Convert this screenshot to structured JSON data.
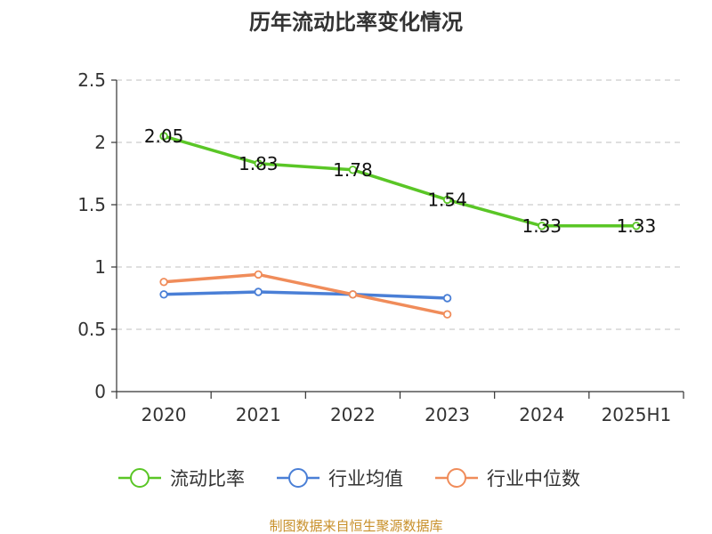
{
  "chart_data": {
    "type": "line",
    "title": "历年流动比率变化情况",
    "categories": [
      "2020",
      "2021",
      "2022",
      "2023",
      "2024",
      "2025H1"
    ],
    "ylim": [
      0,
      2.5
    ],
    "yticks": [
      "0",
      "0.5",
      "1",
      "1.5",
      "2",
      "2.5"
    ],
    "grid": true,
    "legend_position": "bottom",
    "series": [
      {
        "name": "流动比率",
        "color": "#5ac626",
        "values": [
          2.05,
          1.83,
          1.78,
          1.54,
          1.33,
          1.33
        ],
        "labels": [
          "2.05",
          "1.83",
          "1.78",
          "1.54",
          "1.33",
          "1.33"
        ]
      },
      {
        "name": "行业均值",
        "color": "#4a7fd6",
        "values": [
          0.78,
          0.8,
          0.78,
          0.75,
          null,
          null
        ]
      },
      {
        "name": "行业中位数",
        "color": "#f08c5a",
        "values": [
          0.88,
          0.94,
          0.78,
          0.62,
          null,
          null
        ]
      }
    ]
  },
  "source": "制图数据来自恒生聚源数据库"
}
